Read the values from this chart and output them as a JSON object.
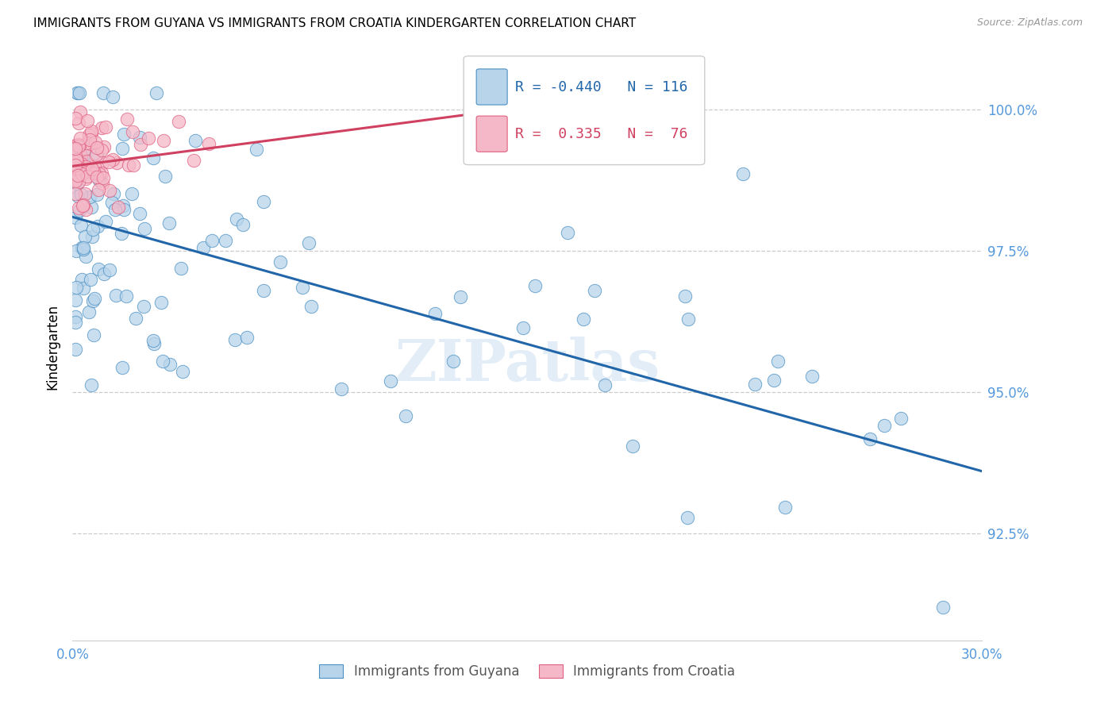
{
  "title": "IMMIGRANTS FROM GUYANA VS IMMIGRANTS FROM CROATIA KINDERGARTEN CORRELATION CHART",
  "source": "Source: ZipAtlas.com",
  "ylabel": "Kindergarten",
  "yaxis_labels": [
    "100.0%",
    "97.5%",
    "95.0%",
    "92.5%"
  ],
  "yaxis_values": [
    1.0,
    0.975,
    0.95,
    0.925
  ],
  "xlim": [
    0.0,
    0.3
  ],
  "ylim": [
    0.906,
    1.01
  ],
  "legend_blue_R": "-0.440",
  "legend_blue_N": "116",
  "legend_pink_R": "0.335",
  "legend_pink_N": "76",
  "legend_label_blue": "Immigrants from Guyana",
  "legend_label_pink": "Immigrants from Croatia",
  "watermark": "ZIPatlas",
  "blue_color": "#b8d4ea",
  "blue_edge_color": "#4a90c4",
  "blue_line_color": "#2266aa",
  "pink_color": "#f5b8c8",
  "pink_edge_color": "#e06080",
  "pink_line_color": "#d04060",
  "blue_line_x": [
    0.0,
    0.3
  ],
  "blue_line_y": [
    0.981,
    0.936
  ],
  "pink_line_x": [
    0.0,
    0.2
  ],
  "pink_line_y": [
    0.99,
    1.004
  ]
}
